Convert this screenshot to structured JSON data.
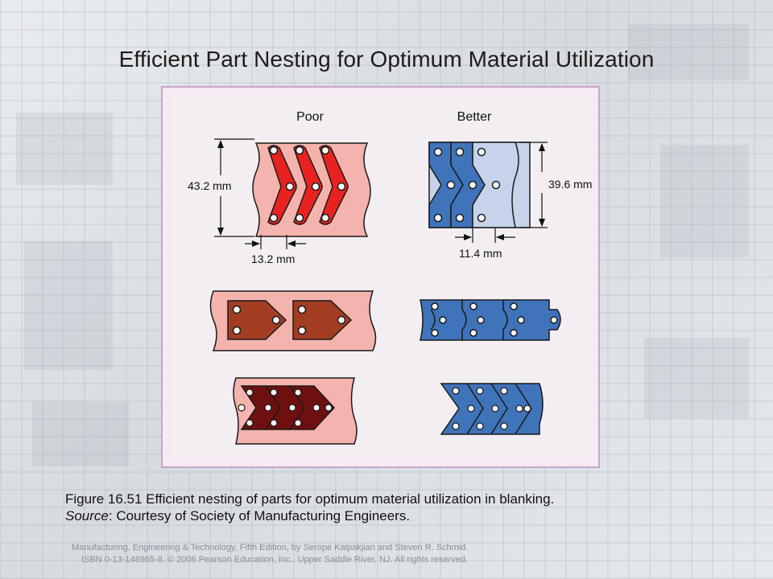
{
  "title": "Efficient Part Nesting for Optimum Material Utilization",
  "figure": {
    "column_labels": {
      "poor": "Poor",
      "better": "Better"
    },
    "dimensions": {
      "poor_height": "43.2 mm",
      "poor_pitch": "13.2 mm",
      "better_height": "39.6 mm",
      "better_pitch": "11.4 mm"
    },
    "colors": {
      "strip_pink": "#f5b3ad",
      "part_red": "#e8231f",
      "part_brown": "#a33d22",
      "part_maroon": "#6e1010",
      "better_blue": "#3f74bb",
      "better_light": "#c6d3ea"
    }
  },
  "caption": {
    "line1": "Figure 16.51  Efficient nesting of parts for optimum material utilization in blanking.",
    "source_label": "Source",
    "source_text": ":  Courtesy of Society of Manufacturing Engineers."
  },
  "credit": {
    "line1": "Manufacturing, Engineering & Technology, Fifth Edition, by Serope Kalpakjian and Steven R. Schmid.",
    "line2": "ISBN 0-13-148965-8.  © 2006 Pearson Education, Inc., Upper Saddle River, NJ.  All rights reserved."
  }
}
